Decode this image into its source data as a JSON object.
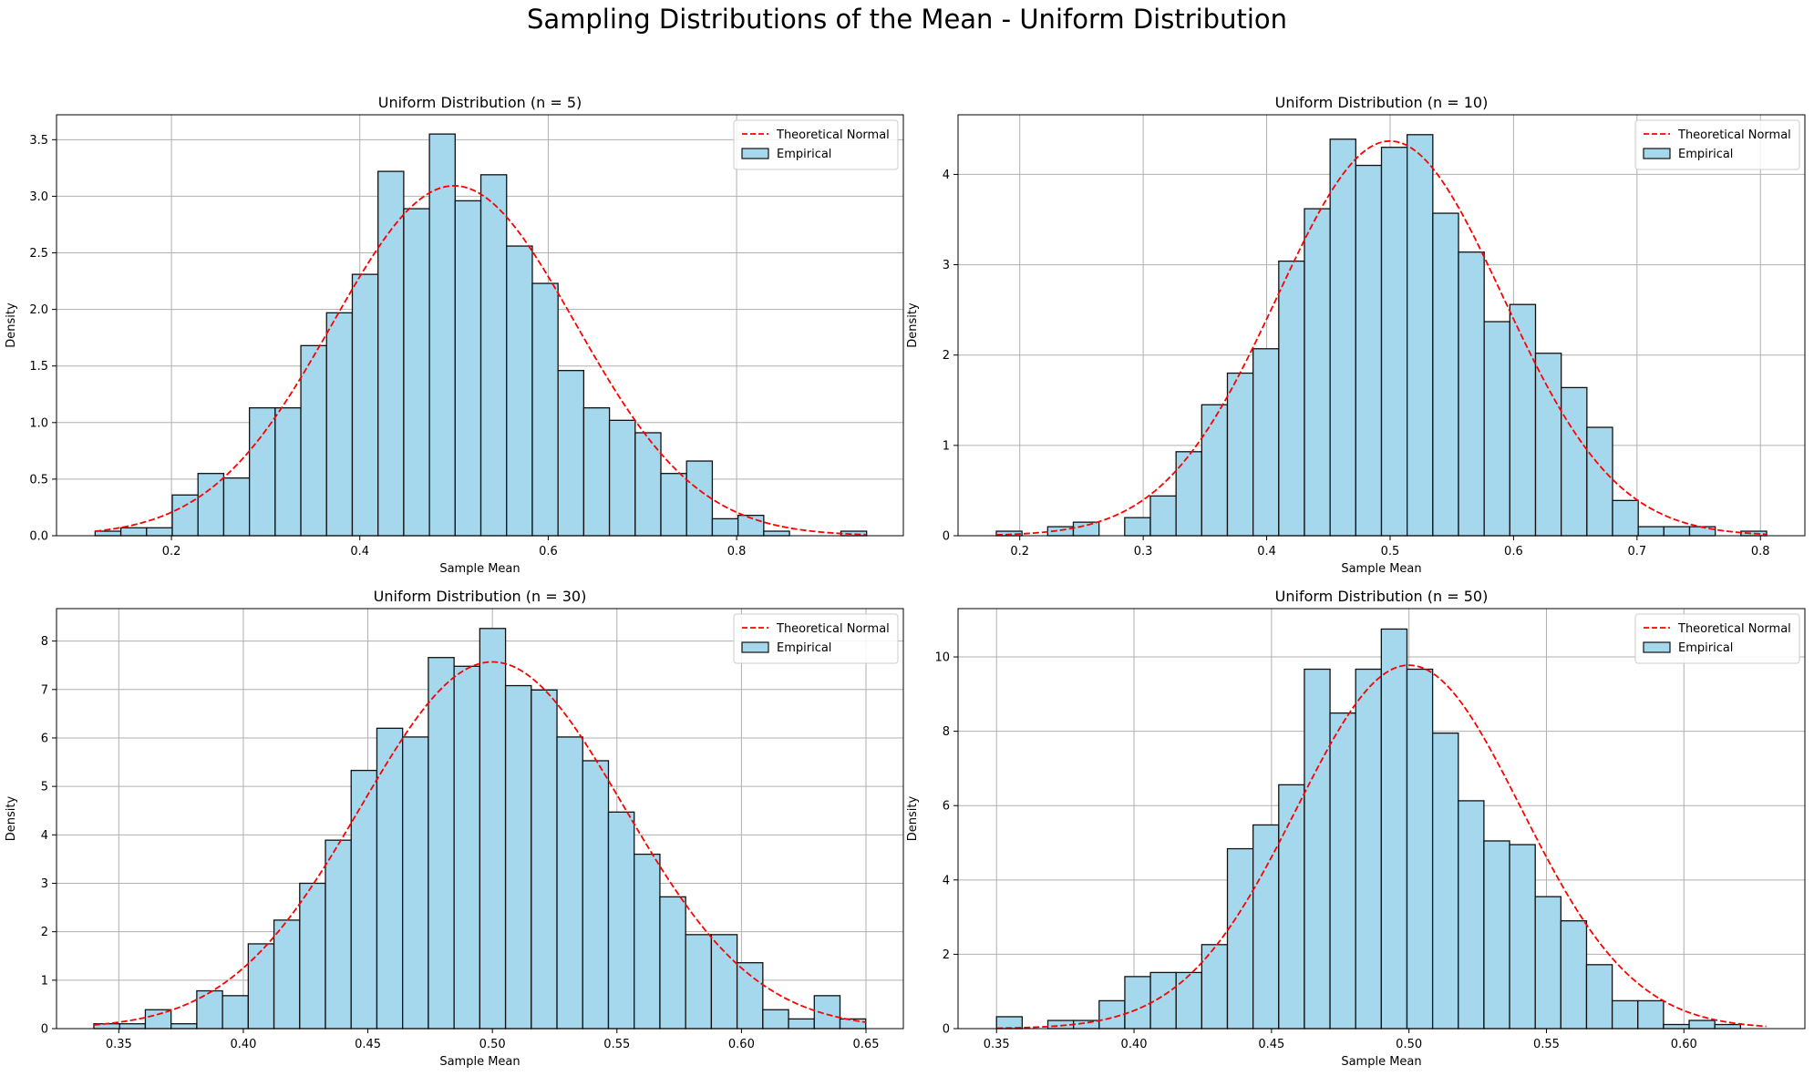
{
  "figure_title": "Sampling Distributions of the Mean - Uniform Distribution",
  "colors": {
    "bar_fill": "#a5d8ed",
    "bar_edge": "#111111",
    "curve": "#ff0000",
    "grid": "#b0b0b0"
  },
  "chart_data": [
    {
      "type": "bar",
      "title": "Uniform Distribution (n = 5)",
      "xlabel": "Sample Mean",
      "ylabel": "Density",
      "xlim": [
        0.078,
        0.977
      ],
      "ylim": [
        0,
        3.72
      ],
      "xticks": [
        0.2,
        0.4,
        0.6,
        0.8
      ],
      "xtick_labels": [
        "0.2",
        "0.4",
        "0.6",
        "0.8"
      ],
      "yticks": [
        0,
        0.5,
        1.0,
        1.5,
        2.0,
        2.5,
        3.0,
        3.5
      ],
      "ytick_labels": [
        "0.0",
        "0.5",
        "1.0",
        "1.5",
        "2.0",
        "2.5",
        "3.0",
        "3.5"
      ],
      "grid": true,
      "legend_position": "top-right",
      "legend": [
        "Theoretical Normal",
        "Empirical"
      ],
      "bins": {
        "start": 0.119,
        "width": 0.0273
      },
      "values": [
        0.04,
        0.07,
        0.07,
        0.36,
        0.55,
        0.51,
        1.13,
        1.13,
        1.68,
        1.97,
        2.31,
        3.22,
        2.89,
        3.55,
        2.96,
        3.19,
        2.56,
        2.23,
        1.46,
        1.13,
        1.02,
        0.91,
        0.55,
        0.66,
        0.15,
        0.18,
        0.04,
        0,
        0,
        0.04
      ],
      "normal": {
        "name": "Theoretical Normal",
        "mean": 0.5,
        "std": 0.129,
        "x_range": [
          0.119,
          0.937
        ]
      }
    },
    {
      "type": "bar",
      "title": "Uniform Distribution (n = 10)",
      "xlabel": "Sample Mean",
      "ylabel": "Density",
      "xlim": [
        0.15,
        0.836
      ],
      "ylim": [
        0,
        4.66
      ],
      "xticks": [
        0.2,
        0.3,
        0.4,
        0.5,
        0.6,
        0.7,
        0.8
      ],
      "xtick_labels": [
        "0.2",
        "0.3",
        "0.4",
        "0.5",
        "0.6",
        "0.7",
        "0.8"
      ],
      "yticks": [
        0,
        1,
        2,
        3,
        4
      ],
      "ytick_labels": [
        "0",
        "1",
        "2",
        "3",
        "4"
      ],
      "grid": true,
      "legend_position": "top-right",
      "legend": [
        "Theoretical Normal",
        "Empirical"
      ],
      "bins": {
        "start": 0.181,
        "width": 0.0208
      },
      "values": [
        0.05,
        0,
        0.1,
        0.15,
        0,
        0.2,
        0.44,
        0.93,
        1.45,
        1.8,
        2.07,
        3.04,
        3.62,
        4.39,
        4.1,
        4.3,
        4.44,
        3.57,
        3.14,
        2.37,
        2.56,
        2.02,
        1.64,
        1.2,
        0.39,
        0.1,
        0.1,
        0.1,
        0,
        0.05
      ],
      "normal": {
        "name": "Theoretical Normal",
        "mean": 0.5,
        "std": 0.0913,
        "x_range": [
          0.181,
          0.805
        ]
      }
    },
    {
      "type": "bar",
      "title": "Uniform Distribution (n = 30)",
      "xlabel": "Sample Mean",
      "ylabel": "Density",
      "xlim": [
        0.325,
        0.665
      ],
      "ylim": [
        0,
        8.67
      ],
      "xticks": [
        0.35,
        0.4,
        0.45,
        0.5,
        0.55,
        0.6,
        0.65
      ],
      "xtick_labels": [
        "0.35",
        "0.40",
        "0.45",
        "0.50",
        "0.55",
        "0.60",
        "0.65"
      ],
      "yticks": [
        0,
        1,
        2,
        3,
        4,
        5,
        6,
        7,
        8
      ],
      "ytick_labels": [
        "0",
        "1",
        "2",
        "3",
        "4",
        "5",
        "6",
        "7",
        "8"
      ],
      "grid": true,
      "legend_position": "top-right",
      "legend": [
        "Theoretical Normal",
        "Empirical"
      ],
      "bins": {
        "start": 0.34,
        "width": 0.01033
      },
      "values": [
        0.1,
        0.1,
        0.39,
        0.1,
        0.78,
        0.68,
        1.75,
        2.24,
        3.0,
        3.89,
        5.33,
        6.2,
        6.02,
        7.66,
        7.48,
        8.26,
        7.08,
        6.99,
        6.02,
        5.53,
        4.47,
        3.6,
        2.72,
        1.94,
        1.94,
        1.36,
        0.39,
        0.2,
        0.68,
        0.2
      ],
      "normal": {
        "name": "Theoretical Normal",
        "mean": 0.5,
        "std": 0.0527,
        "x_range": [
          0.34,
          0.65
        ]
      }
    },
    {
      "type": "bar",
      "title": "Uniform Distribution (n = 50)",
      "xlabel": "Sample Mean",
      "ylabel": "Density",
      "xlim": [
        0.336,
        0.644
      ],
      "ylim": [
        0,
        11.3
      ],
      "xticks": [
        0.35,
        0.4,
        0.45,
        0.5,
        0.55,
        0.6
      ],
      "xtick_labels": [
        "0.35",
        "0.40",
        "0.45",
        "0.50",
        "0.55",
        "0.60"
      ],
      "yticks": [
        0,
        2,
        4,
        6,
        8,
        10
      ],
      "ytick_labels": [
        "0",
        "2",
        "4",
        "6",
        "8",
        "10"
      ],
      "grid": true,
      "legend_position": "top-right",
      "legend": [
        "Theoretical Normal",
        "Empirical"
      ],
      "bins": {
        "start": 0.35,
        "width": 0.00933
      },
      "values": [
        0.32,
        0,
        0.22,
        0.22,
        0.75,
        1.4,
        1.51,
        1.51,
        2.26,
        4.84,
        5.48,
        6.56,
        9.67,
        8.49,
        9.67,
        10.75,
        9.67,
        7.95,
        6.13,
        5.05,
        4.95,
        3.55,
        2.9,
        1.72,
        0.75,
        0.75,
        0.11,
        0.22,
        0.11,
        0
      ],
      "normal": {
        "name": "Theoretical Normal",
        "mean": 0.5,
        "std": 0.0408,
        "x_range": [
          0.35,
          0.63
        ]
      }
    }
  ]
}
